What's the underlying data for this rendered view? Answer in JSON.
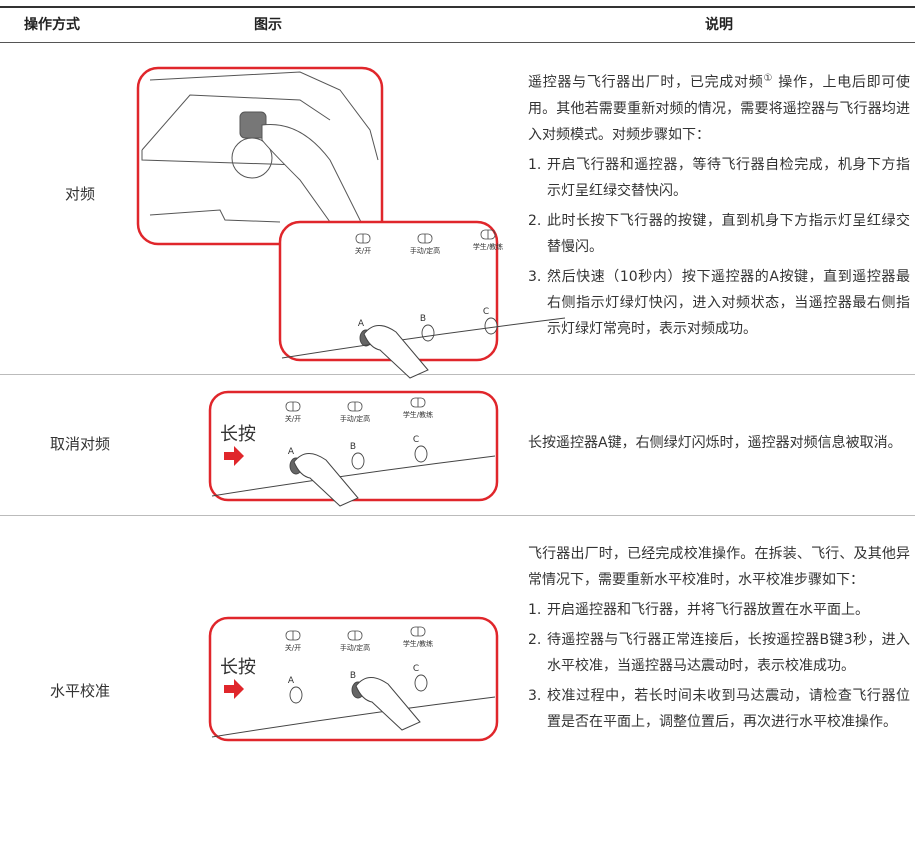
{
  "table": {
    "headers": [
      "操作方式",
      "图示",
      "说明"
    ],
    "rows": [
      {
        "operation": "对频",
        "figure": {
          "labels": [
            "关/开",
            "手动/定高",
            "学生/教练"
          ],
          "buttons": [
            "A",
            "B",
            "C"
          ]
        },
        "description": {
          "intro_before": "遥控器与飞行器出厂时，已完成对频",
          "note": "①",
          "intro_after": "操作，上电后即可使用。其他若需要重新对频的情况，需要将遥控器与飞行器均进入对频模式。对频步骤如下：",
          "steps": [
            {
              "number": "1.",
              "text": "开启飞行器和遥控器，等待飞行器自检完成，机身下方指示灯呈红绿交替快闪。"
            },
            {
              "number": "2.",
              "text": "此时长按下飞行器的按键，直到机身下方指示灯呈红绿交替慢闪。"
            },
            {
              "number": "3.",
              "text": "然后快速（10秒内）按下遥控器的A按键，直到遥控器最右侧指示灯绿灯快闪，进入对频状态，当遥控器最右侧指示灯绿灯常亮时，表示对频成功。"
            }
          ]
        }
      },
      {
        "operation": "取消对频",
        "figure": {
          "hold": "长按",
          "labels": [
            "关/开",
            "手动/定高",
            "学生/教练"
          ],
          "buttons": [
            "A",
            "B",
            "C"
          ]
        },
        "description": {
          "text": "长按遥控器A键，右侧绿灯闪烁时，遥控器对频信息被取消。"
        }
      },
      {
        "operation": "水平校准",
        "figure": {
          "hold": "长按",
          "labels": [
            "关/开",
            "手动/定高",
            "学生/教练"
          ],
          "buttons": [
            "A",
            "B",
            "C"
          ]
        },
        "description": {
          "intro": "飞行器出厂时，已经完成校准操作。在拆装、飞行、及其他异常情况下，需要重新水平校准时，水平校准步骤如下：",
          "steps": [
            {
              "number": "1.",
              "text": "开启遥控器和飞行器，并将飞行器放置在水平面上。"
            },
            {
              "number": "2.",
              "text": "待遥控器与飞行器正常连接后，长按遥控器B键3秒，进入水平校准，当遥控器马达震动时，表示校准成功。"
            },
            {
              "number": "3.",
              "text": "校准过程中，若长时间未收到马达震动，请检查飞行器位置是否在平面上，调整位置后，再次进行水平校准操作。"
            }
          ]
        }
      }
    ]
  }
}
